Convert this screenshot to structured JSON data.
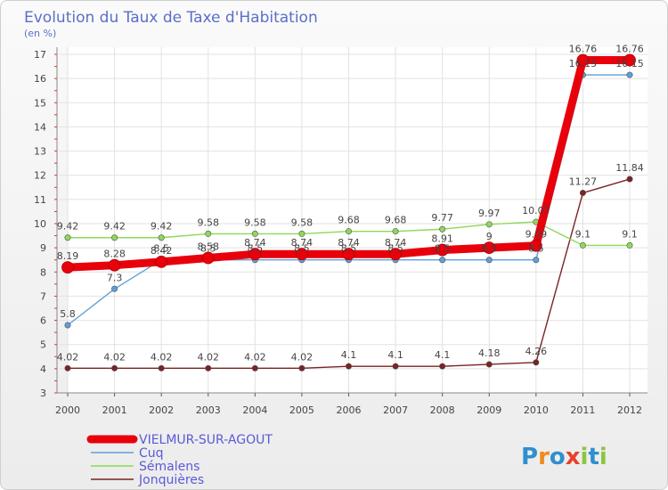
{
  "chart_data": {
    "type": "line",
    "title": "Evolution du Taux de Taxe d'Habitation",
    "ylabel": "(en %)",
    "xlabel": "",
    "ylim": [
      3,
      17
    ],
    "yticks": [
      3,
      4,
      5,
      6,
      7,
      8,
      9,
      10,
      11,
      12,
      13,
      14,
      15,
      16,
      17
    ],
    "x": [
      "2000",
      "2001",
      "2002",
      "2003",
      "2004",
      "2005",
      "2006",
      "2007",
      "2008",
      "2009",
      "2010",
      "2011",
      "2012"
    ],
    "grid": true,
    "legend_position": "bottom-left",
    "series": [
      {
        "name": "VIELMUR-SUR-AGOUT",
        "color": "#e8000b",
        "values": [
          8.19,
          8.28,
          8.42,
          8.58,
          8.74,
          8.74,
          8.74,
          8.74,
          8.91,
          9.0,
          9.09,
          16.76,
          16.76
        ],
        "labels": [
          "8.19",
          "8.28",
          "8.42",
          "8.58",
          "8.74",
          "8.74",
          "8.74",
          "8.74",
          "8.91",
          "9",
          "9.09",
          "16.76",
          "16.76"
        ]
      },
      {
        "name": "Cuq",
        "color": "#5f9fd8",
        "values": [
          5.8,
          7.3,
          8.5,
          8.5,
          8.5,
          8.5,
          8.5,
          8.5,
          8.5,
          8.5,
          8.5,
          16.15,
          16.15
        ],
        "labels": [
          "5.8",
          "7.3",
          "8.5",
          "8.5",
          "8.5",
          "8.5",
          "8.5",
          "8.5",
          "8.5",
          "8.5",
          "8.5",
          "16.15",
          "16.15"
        ]
      },
      {
        "name": "Sémalens",
        "color": "#8ed85a",
        "values": [
          9.42,
          9.42,
          9.42,
          9.58,
          9.58,
          9.58,
          9.68,
          9.68,
          9.77,
          9.97,
          10.07,
          9.1,
          9.1
        ],
        "labels": [
          "9.42",
          "9.42",
          "9.42",
          "9.58",
          "9.58",
          "9.58",
          "9.68",
          "9.68",
          "9.77",
          "9.97",
          "10.07",
          "9.1",
          "9.1"
        ]
      },
      {
        "name": "Jonquières",
        "color": "#7a2323",
        "values": [
          4.02,
          4.02,
          4.02,
          4.02,
          4.02,
          4.02,
          4.1,
          4.1,
          4.1,
          4.18,
          4.26,
          11.27,
          11.84
        ],
        "labels": [
          "4.02",
          "4.02",
          "4.02",
          "4.02",
          "4.02",
          "4.02",
          "4.1",
          "4.1",
          "4.1",
          "4.18",
          "4.26",
          "11.27",
          "11.84"
        ]
      }
    ]
  },
  "brand": {
    "text": "Proxiti",
    "letters": [
      "P",
      "r",
      "o",
      "x",
      "i",
      "t",
      "i"
    ],
    "colors": [
      "#2f8fcf",
      "#f08a1c",
      "#2f8fcf",
      "#e8402a",
      "#8cc63f",
      "#2f8fcf",
      "#8cc63f"
    ]
  }
}
